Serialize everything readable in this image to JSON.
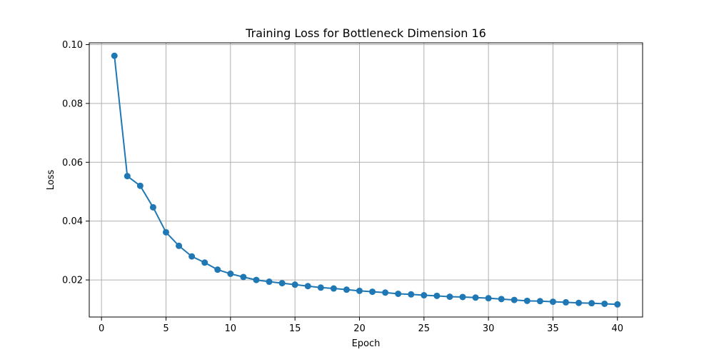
{
  "chart_data": {
    "type": "line",
    "title": "Training Loss for Bottleneck Dimension 16",
    "xlabel": "Epoch",
    "ylabel": "Loss",
    "xlim": [
      -0.95,
      41.95
    ],
    "ylim": [
      0.0074,
      0.1006
    ],
    "xticks": [
      0,
      5,
      10,
      15,
      20,
      25,
      30,
      35,
      40
    ],
    "yticks": [
      0.02,
      0.04,
      0.06,
      0.08,
      0.1
    ],
    "ytick_labels": [
      "0.02",
      "0.04",
      "0.06",
      "0.08",
      "0.10"
    ],
    "grid": true,
    "marker": "circle",
    "color": "#1f77b4",
    "series": [
      {
        "x": [
          1,
          2,
          3,
          4,
          5,
          6,
          7,
          8,
          9,
          10,
          11,
          12,
          13,
          14,
          15,
          16,
          17,
          18,
          19,
          20,
          21,
          22,
          23,
          24,
          25,
          26,
          27,
          28,
          29,
          30,
          31,
          32,
          33,
          34,
          35,
          36,
          37,
          38,
          39,
          40
        ],
        "values": [
          0.0962,
          0.0553,
          0.052,
          0.0447,
          0.0362,
          0.0316,
          0.028,
          0.0259,
          0.0235,
          0.0221,
          0.021,
          0.02,
          0.0194,
          0.0189,
          0.0184,
          0.0179,
          0.0174,
          0.0171,
          0.0167,
          0.0163,
          0.016,
          0.0157,
          0.0153,
          0.0151,
          0.0148,
          0.0146,
          0.0143,
          0.0142,
          0.014,
          0.0138,
          0.0135,
          0.0132,
          0.0129,
          0.0128,
          0.0126,
          0.0124,
          0.0122,
          0.0121,
          0.0119,
          0.0117
        ]
      }
    ]
  }
}
